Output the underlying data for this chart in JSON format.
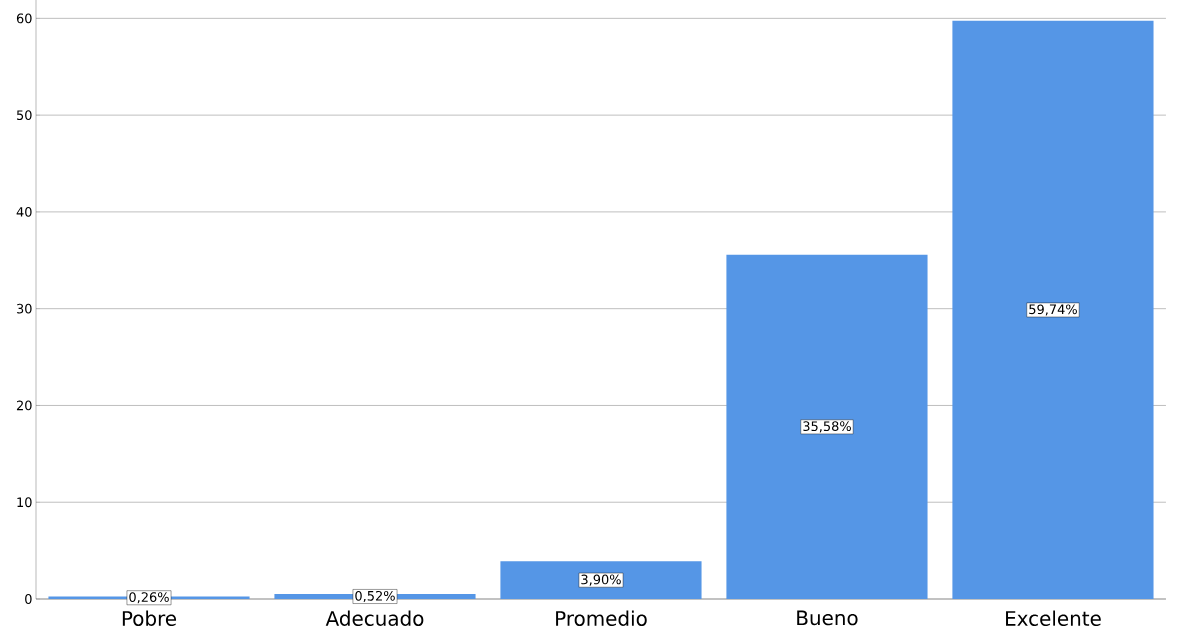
{
  "chart_data": {
    "type": "bar",
    "categories": [
      "Pobre",
      "Adecuado",
      "Promedio",
      "Bueno",
      "Excelente"
    ],
    "values": [
      0.26,
      0.52,
      3.9,
      35.58,
      59.74
    ],
    "value_labels": [
      "0,26%",
      "0,52%",
      "3,90%",
      "35,58%",
      "59,74%"
    ],
    "color": "#5596e6",
    "ylim": [
      0,
      62
    ],
    "yticks": [
      0,
      10,
      20,
      30,
      40,
      50,
      60
    ],
    "grid": "y"
  }
}
